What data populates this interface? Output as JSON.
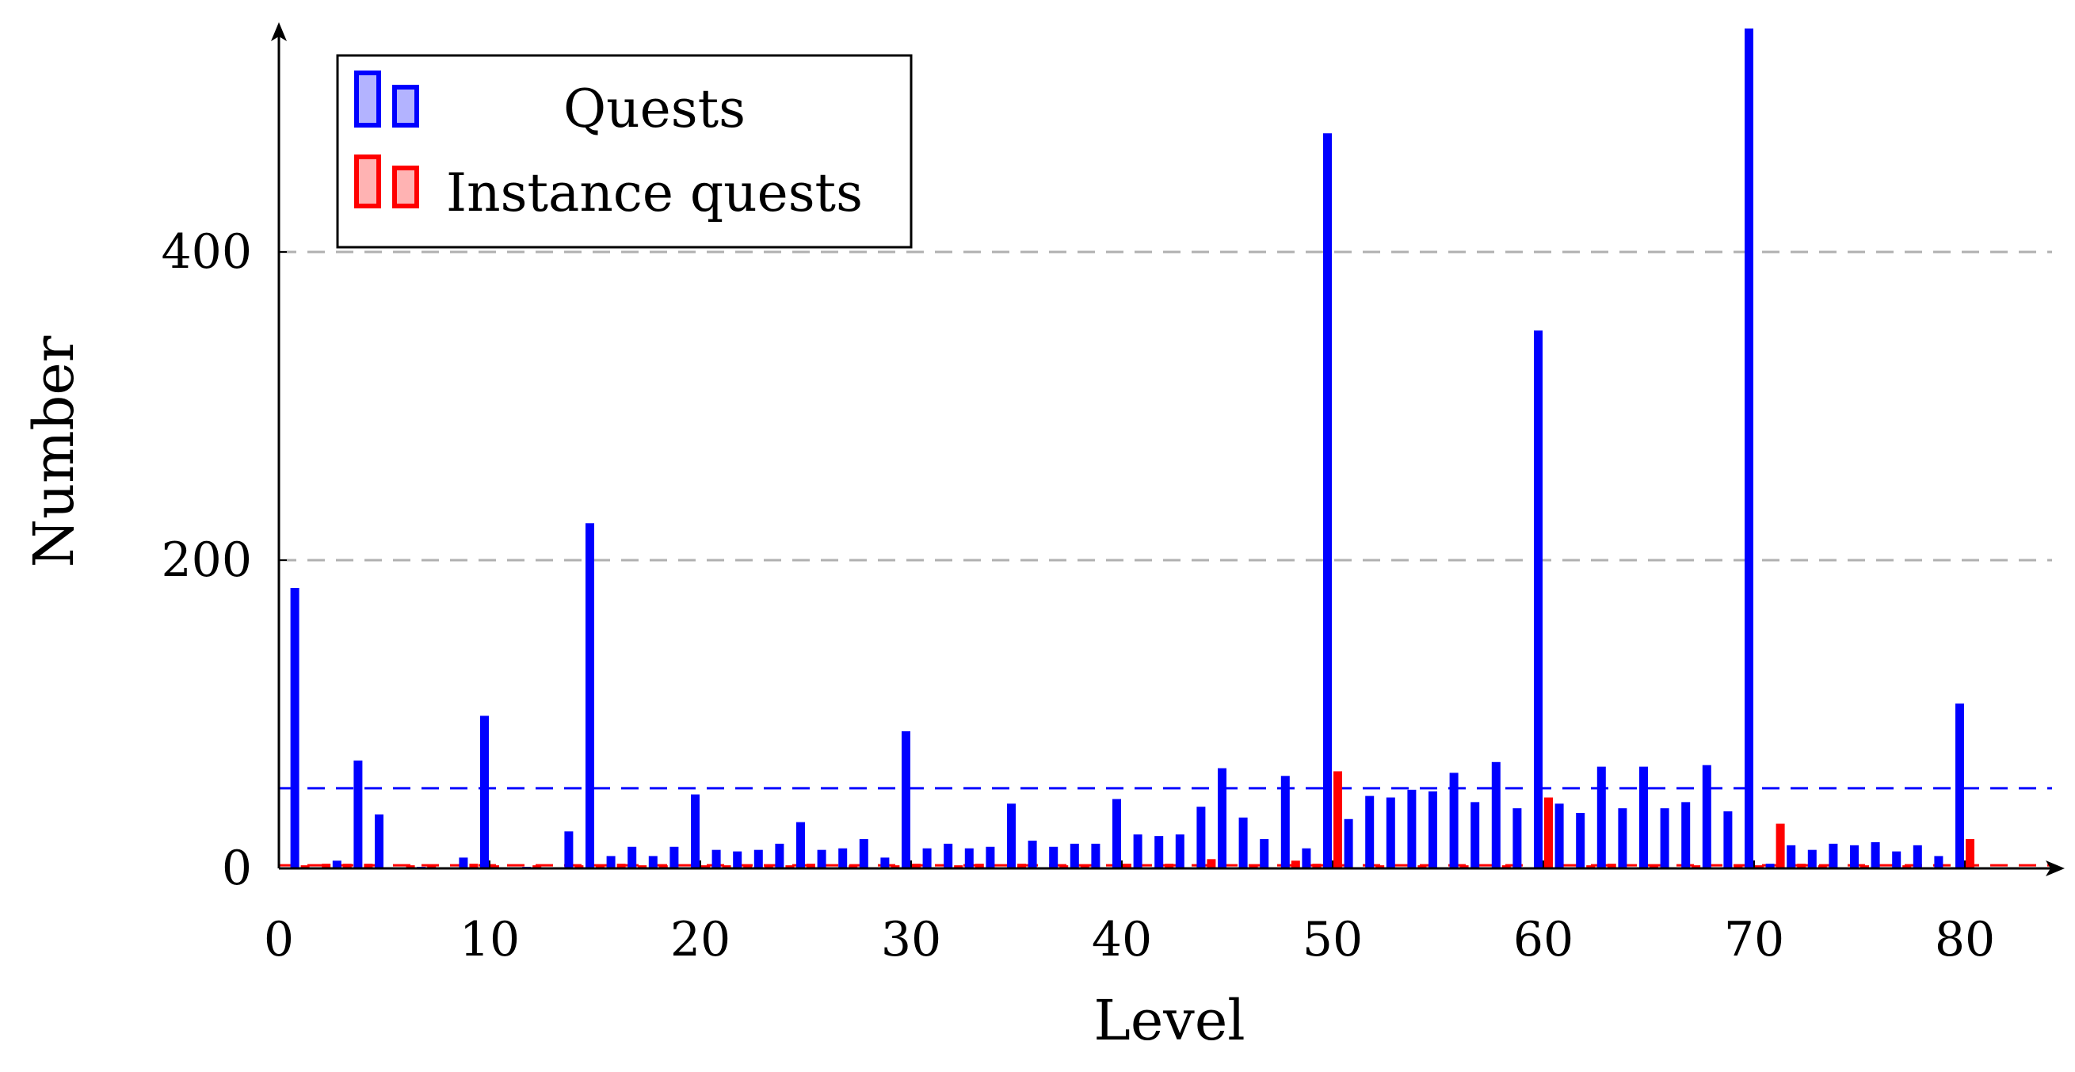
{
  "chart_data": {
    "type": "bar",
    "title": "",
    "xlabel": "Level",
    "ylabel": "Number",
    "xlim": [
      0,
      85
    ],
    "ylim": [
      0,
      545
    ],
    "x_ticks": [
      0,
      10,
      20,
      30,
      40,
      50,
      60,
      70,
      80
    ],
    "y_ticks": [
      0,
      200,
      400
    ],
    "grid": {
      "horizontal": true,
      "values": [
        200,
        400
      ],
      "color": "#b0b0b0"
    },
    "legend": {
      "position": "top-left"
    },
    "series": [
      {
        "name": "Quests",
        "color": "#0000ff",
        "mean": 52,
        "points": [
          [
            1,
            182
          ],
          [
            3,
            5
          ],
          [
            4,
            70
          ],
          [
            5,
            35
          ],
          [
            7,
            1
          ],
          [
            9,
            7
          ],
          [
            10,
            99
          ],
          [
            12,
            1
          ],
          [
            14,
            24
          ],
          [
            15,
            224
          ],
          [
            16,
            8
          ],
          [
            17,
            14
          ],
          [
            18,
            8
          ],
          [
            19,
            14
          ],
          [
            20,
            48
          ],
          [
            21,
            12
          ],
          [
            22,
            11
          ],
          [
            23,
            12
          ],
          [
            24,
            16
          ],
          [
            25,
            30
          ],
          [
            26,
            12
          ],
          [
            27,
            13
          ],
          [
            28,
            19
          ],
          [
            29,
            7
          ],
          [
            30,
            89
          ],
          [
            31,
            13
          ],
          [
            32,
            16
          ],
          [
            33,
            13
          ],
          [
            34,
            14
          ],
          [
            35,
            42
          ],
          [
            36,
            18
          ],
          [
            37,
            14
          ],
          [
            38,
            16
          ],
          [
            39,
            16
          ],
          [
            40,
            45
          ],
          [
            41,
            22
          ],
          [
            42,
            21
          ],
          [
            43,
            22
          ],
          [
            44,
            40
          ],
          [
            45,
            65
          ],
          [
            46,
            33
          ],
          [
            47,
            19
          ],
          [
            48,
            60
          ],
          [
            49,
            13
          ],
          [
            50,
            477
          ],
          [
            51,
            32
          ],
          [
            52,
            47
          ],
          [
            53,
            46
          ],
          [
            54,
            51
          ],
          [
            55,
            50
          ],
          [
            56,
            62
          ],
          [
            57,
            43
          ],
          [
            58,
            69
          ],
          [
            59,
            39
          ],
          [
            60,
            349
          ],
          [
            61,
            42
          ],
          [
            62,
            36
          ],
          [
            63,
            66
          ],
          [
            64,
            39
          ],
          [
            65,
            66
          ],
          [
            66,
            39
          ],
          [
            67,
            43
          ],
          [
            68,
            67
          ],
          [
            69,
            37
          ],
          [
            70,
            545
          ],
          [
            71,
            3
          ],
          [
            72,
            15
          ],
          [
            73,
            12
          ],
          [
            74,
            16
          ],
          [
            75,
            15
          ],
          [
            76,
            17
          ],
          [
            77,
            11
          ],
          [
            78,
            15
          ],
          [
            79,
            8
          ],
          [
            80,
            107
          ]
        ]
      },
      {
        "name": "Instance quests",
        "color": "#ff0000",
        "mean": 2,
        "points": [
          [
            1,
            2
          ],
          [
            2,
            3
          ],
          [
            3,
            3
          ],
          [
            4,
            3
          ],
          [
            6,
            2
          ],
          [
            7,
            2
          ],
          [
            9,
            3
          ],
          [
            10,
            2
          ],
          [
            12,
            2
          ],
          [
            14,
            2
          ],
          [
            15,
            2
          ],
          [
            16,
            3
          ],
          [
            17,
            2
          ],
          [
            18,
            2
          ],
          [
            20,
            2
          ],
          [
            21,
            2
          ],
          [
            22,
            2
          ],
          [
            23,
            2
          ],
          [
            24,
            2
          ],
          [
            25,
            3
          ],
          [
            27,
            2
          ],
          [
            29,
            2
          ],
          [
            30,
            3
          ],
          [
            32,
            2
          ],
          [
            33,
            3
          ],
          [
            35,
            3
          ],
          [
            37,
            2
          ],
          [
            38,
            2
          ],
          [
            40,
            3
          ],
          [
            42,
            3
          ],
          [
            44,
            6
          ],
          [
            46,
            2
          ],
          [
            48,
            5
          ],
          [
            49,
            3
          ],
          [
            50,
            63
          ],
          [
            52,
            2
          ],
          [
            54,
            2
          ],
          [
            56,
            2
          ],
          [
            58,
            2
          ],
          [
            60,
            46
          ],
          [
            62,
            2
          ],
          [
            63,
            3
          ],
          [
            65,
            2
          ],
          [
            67,
            2
          ],
          [
            69,
            2
          ],
          [
            70,
            2
          ],
          [
            71,
            29
          ],
          [
            72,
            3
          ],
          [
            73,
            2
          ],
          [
            75,
            2
          ],
          [
            77,
            2
          ],
          [
            80,
            19
          ]
        ]
      }
    ]
  }
}
